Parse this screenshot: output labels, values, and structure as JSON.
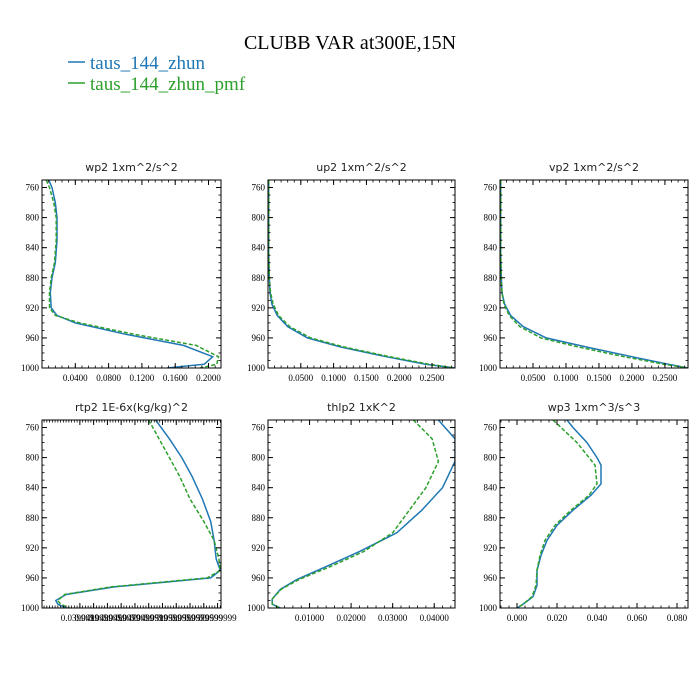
{
  "figure": {
    "title": "CLUBB VAR at300E,15N",
    "legend": [
      {
        "name": "taus_144_zhun",
        "color": "#1f77b4"
      },
      {
        "name": "taus_144_zhun_pmf",
        "color": "#2ca02c"
      }
    ]
  },
  "chart_data": [
    {
      "type": "line",
      "title": "wp2   1xm^2/s^2",
      "xlim": [
        0.0,
        0.215
      ],
      "ylim": [
        1000,
        750
      ],
      "xticks": [
        0.04,
        0.08,
        0.12,
        0.16,
        0.2
      ],
      "xtick_labels": [
        "0.0400",
        "0.0800",
        "0.1200",
        "0.1600",
        "0.2000"
      ],
      "yticks": [
        760,
        800,
        840,
        880,
        920,
        960,
        1000
      ],
      "series": [
        {
          "name": "taus_144_zhun",
          "color": "#1f77b4",
          "dash": "",
          "x": [
            0.008,
            0.012,
            0.016,
            0.018,
            0.018,
            0.016,
            0.012,
            0.01,
            0.011,
            0.018,
            0.04,
            0.1,
            0.17,
            0.205,
            0.195,
            0.15
          ],
          "y": [
            750,
            760,
            780,
            800,
            830,
            860,
            880,
            900,
            920,
            930,
            940,
            955,
            970,
            985,
            995,
            1000
          ]
        },
        {
          "name": "taus_144_zhun_pmf",
          "color": "#2ca02c",
          "dash": "4,2",
          "x": [
            0.005,
            0.009,
            0.014,
            0.017,
            0.017,
            0.015,
            0.011,
            0.009,
            0.009,
            0.016,
            0.045,
            0.11,
            0.185,
            0.212,
            0.21,
            0.19
          ],
          "y": [
            750,
            760,
            780,
            800,
            830,
            860,
            880,
            900,
            920,
            930,
            940,
            955,
            970,
            985,
            995,
            1000
          ]
        }
      ]
    },
    {
      "type": "line",
      "title": "up2   1xm^2/s^2",
      "xlim": [
        0.0,
        0.285
      ],
      "ylim": [
        1000,
        750
      ],
      "xticks": [
        0.05,
        0.1,
        0.15,
        0.2,
        0.25
      ],
      "xtick_labels": [
        "0.0500",
        "0.1000",
        "0.1500",
        "0.2000",
        "0.2500"
      ],
      "yticks": [
        760,
        800,
        840,
        880,
        920,
        960,
        1000
      ],
      "series": [
        {
          "name": "taus_144_zhun",
          "color": "#1f77b4",
          "dash": "",
          "x": [
            0.001,
            0.001,
            0.001,
            0.002,
            0.003,
            0.006,
            0.014,
            0.03,
            0.06,
            0.11,
            0.18,
            0.24,
            0.285
          ],
          "y": [
            750,
            800,
            850,
            880,
            900,
            915,
            930,
            945,
            960,
            972,
            985,
            995,
            1000
          ]
        },
        {
          "name": "taus_144_zhun_pmf",
          "color": "#2ca02c",
          "dash": "4,2",
          "x": [
            0.001,
            0.001,
            0.001,
            0.002,
            0.004,
            0.008,
            0.016,
            0.033,
            0.065,
            0.115,
            0.185,
            0.245,
            0.285
          ],
          "y": [
            750,
            800,
            850,
            880,
            900,
            915,
            930,
            945,
            960,
            972,
            985,
            995,
            1000
          ]
        }
      ]
    },
    {
      "type": "line",
      "title": "vp2   1xm^2/s^2",
      "xlim": [
        0.0,
        0.285
      ],
      "ylim": [
        1000,
        750
      ],
      "xticks": [
        0.05,
        0.1,
        0.15,
        0.2,
        0.25
      ],
      "xtick_labels": [
        "0.0500",
        "0.1000",
        "0.1500",
        "0.2000",
        "0.2500"
      ],
      "yticks": [
        760,
        800,
        840,
        880,
        920,
        960,
        1000
      ],
      "series": [
        {
          "name": "taus_144_zhun",
          "color": "#1f77b4",
          "dash": "",
          "x": [
            0.001,
            0.001,
            0.001,
            0.002,
            0.003,
            0.007,
            0.016,
            0.035,
            0.07,
            0.13,
            0.2,
            0.255,
            0.285
          ],
          "y": [
            750,
            800,
            850,
            880,
            900,
            915,
            930,
            945,
            960,
            972,
            985,
            995,
            1000
          ]
        },
        {
          "name": "taus_144_zhun_pmf",
          "color": "#2ca02c",
          "dash": "4,2",
          "x": [
            0.001,
            0.001,
            0.001,
            0.002,
            0.003,
            0.006,
            0.014,
            0.03,
            0.062,
            0.118,
            0.188,
            0.248,
            0.285
          ],
          "y": [
            750,
            800,
            850,
            880,
            900,
            915,
            930,
            945,
            960,
            972,
            985,
            995,
            1000
          ]
        }
      ]
    },
    {
      "type": "line",
      "title": "rtp2   1E-6x(kg/kg)^2",
      "xlim": [
        0.0345,
        0.0605
      ],
      "ylim": [
        1000,
        750
      ],
      "xticks": [
        0.04,
        0.042,
        0.044,
        0.046,
        0.048,
        0.05,
        0.052,
        0.054,
        0.056,
        0.058,
        0.06
      ],
      "xtick_labels": [
        "0.0399999",
        "0.0419999",
        "0.0439999",
        "0.0459999",
        "0.0479999",
        "0.0499999",
        "0.0519999",
        "0.0539999",
        "0.0559999",
        "0.0579999",
        "0.0599999"
      ],
      "yticks": [
        760,
        800,
        840,
        880,
        920,
        960,
        1000
      ],
      "series": [
        {
          "name": "taus_144_zhun",
          "color": "#1f77b4",
          "dash": "",
          "x": [
            0.051,
            0.053,
            0.0548,
            0.0563,
            0.0578,
            0.059,
            0.0595,
            0.0598,
            0.0604,
            0.059,
            0.045,
            0.038,
            0.0365,
            0.0368,
            0.038
          ],
          "y": [
            750,
            775,
            800,
            825,
            855,
            885,
            910,
            935,
            950,
            960,
            972,
            982,
            990,
            995,
            1000
          ]
        },
        {
          "name": "taus_144_zhun_pmf",
          "color": "#2ca02c",
          "dash": "4,2",
          "x": [
            0.05,
            0.0515,
            0.053,
            0.0545,
            0.056,
            0.058,
            0.0595,
            0.0602,
            0.0604,
            0.0585,
            0.0445,
            0.0378,
            0.0368,
            0.0372,
            0.0385
          ],
          "y": [
            750,
            775,
            800,
            825,
            855,
            885,
            910,
            935,
            950,
            960,
            972,
            982,
            990,
            995,
            1000
          ]
        }
      ]
    },
    {
      "type": "line",
      "title": "thlp2   1xK^2",
      "xlim": [
        0.0,
        0.045
      ],
      "ylim": [
        1000,
        750
      ],
      "xticks": [
        0.01,
        0.02,
        0.03,
        0.04
      ],
      "xtick_labels": [
        "0.01000",
        "0.02000",
        "0.03000",
        "0.04000"
      ],
      "yticks": [
        760,
        800,
        840,
        880,
        920,
        960,
        1000
      ],
      "series": [
        {
          "name": "taus_144_zhun",
          "color": "#1f77b4",
          "dash": "",
          "x": [
            0.041,
            0.045,
            0.045,
            0.042,
            0.037,
            0.031,
            0.022,
            0.014,
            0.007,
            0.003,
            0.001,
            0.001,
            0.003
          ],
          "y": [
            750,
            775,
            805,
            840,
            870,
            900,
            925,
            945,
            962,
            975,
            988,
            995,
            1000
          ]
        },
        {
          "name": "taus_144_zhun_pmf",
          "color": "#2ca02c",
          "dash": "4,2",
          "x": [
            0.035,
            0.0395,
            0.041,
            0.038,
            0.034,
            0.03,
            0.023,
            0.015,
            0.0075,
            0.0032,
            0.001,
            0.001,
            0.003
          ],
          "y": [
            750,
            775,
            805,
            840,
            870,
            900,
            925,
            945,
            962,
            975,
            988,
            995,
            1000
          ]
        }
      ]
    },
    {
      "type": "line",
      "title": "wp3   1xm^3/s^3",
      "xlim": [
        -0.0085,
        0.0855
      ],
      "ylim": [
        1000,
        750
      ],
      "xticks": [
        0.0,
        0.02,
        0.04,
        0.06,
        0.08
      ],
      "xtick_labels": [
        "0.000",
        "0.020",
        "0.040",
        "0.060",
        "0.080"
      ],
      "yticks": [
        760,
        800,
        840,
        880,
        920,
        960,
        1000
      ],
      "series": [
        {
          "name": "taus_144_zhun",
          "color": "#1f77b4",
          "dash": "",
          "x": [
            0.025,
            0.028,
            0.035,
            0.04,
            0.042,
            0.042,
            0.037,
            0.028,
            0.02,
            0.015,
            0.012,
            0.01,
            0.01,
            0.008,
            0.003,
            0.0
          ],
          "y": [
            750,
            760,
            780,
            800,
            810,
            835,
            850,
            870,
            890,
            910,
            930,
            950,
            970,
            985,
            995,
            1000
          ]
        },
        {
          "name": "taus_144_zhun_pmf",
          "color": "#2ca02c",
          "dash": "4,2",
          "x": [
            0.018,
            0.022,
            0.03,
            0.036,
            0.039,
            0.04,
            0.036,
            0.027,
            0.019,
            0.014,
            0.0115,
            0.01,
            0.0095,
            0.0075,
            0.003,
            0.0
          ],
          "y": [
            750,
            760,
            780,
            800,
            810,
            835,
            850,
            870,
            890,
            910,
            930,
            950,
            970,
            985,
            995,
            1000
          ]
        }
      ]
    }
  ]
}
